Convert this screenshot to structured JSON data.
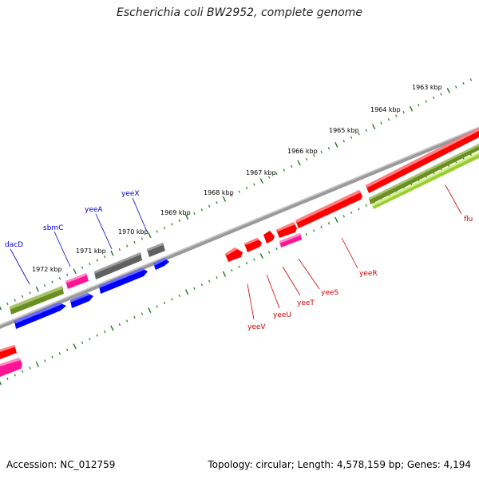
{
  "title": "Escherichia coli BW2952, complete genome",
  "accession": "Accession: NC_012759",
  "summary": "Topology: circular; Length: 4,578,159 bp; Genes: 4,194",
  "colors": {
    "backbone": "#808080",
    "tick_ruler": "#1f7a1f",
    "gene_red": "#ff0000",
    "gene_blue": "#0000ff",
    "gene_pink": "#ff1493",
    "gene_gray": "#606060",
    "gene_olive": "#6b8e23",
    "gene_lime": "#9acd32",
    "label_blue": "#0000cc",
    "label_red": "#cc0000"
  },
  "kbp_labels": [
    "1963 kbp",
    "1964 kbp",
    "1965 kbp",
    "1966 kbp",
    "1967 kbp",
    "1968 kbp",
    "1969 kbp",
    "1970 kbp",
    "1971 kbp",
    "1972 kbp"
  ],
  "top_gene_labels": [
    "yeeX",
    "yeeA",
    "sbmC",
    "dacD"
  ],
  "bottom_gene_labels": [
    "flu",
    "yeeR",
    "yeeS",
    "yeeT",
    "yeeU",
    "yeeV"
  ]
}
